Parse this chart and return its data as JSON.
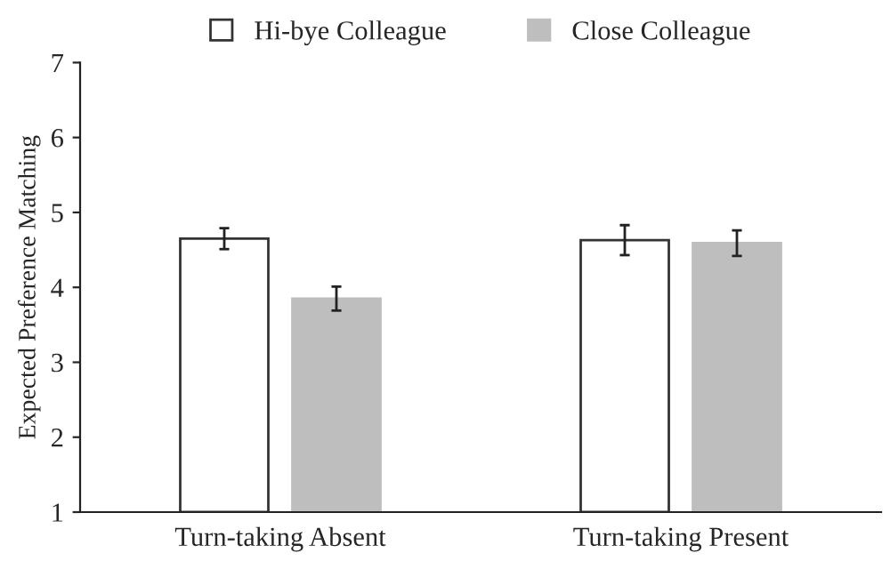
{
  "chart_data": {
    "type": "bar",
    "ylabel": "Expected Preference Matching",
    "categories": [
      "Turn-taking Absent",
      "Turn-taking Present"
    ],
    "series": [
      {
        "name": "Hi-bye Colleague",
        "color": "#ffffff",
        "values": [
          4.65,
          4.63
        ],
        "errors": [
          0.14,
          0.2
        ]
      },
      {
        "name": "Close Colleague",
        "color": "#bebebe",
        "values": [
          3.85,
          4.59
        ],
        "errors": [
          0.16,
          0.17
        ]
      }
    ],
    "ylim": [
      1,
      7
    ],
    "yticks": [
      1,
      2,
      3,
      4,
      5,
      6,
      7
    ],
    "grid": false,
    "legend": "top"
  }
}
